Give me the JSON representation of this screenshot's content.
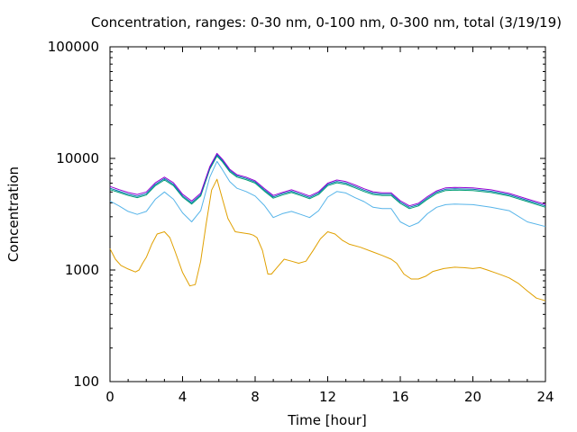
{
  "chart_data": {
    "type": "line",
    "title": "Concentration, ranges: 0-30 nm, 0-100 nm, 0-300 nm, total (3/19/19)",
    "xlabel": "Time [hour]",
    "ylabel": "Concentration",
    "xlim": [
      0,
      24
    ],
    "ylim": [
      100,
      100000
    ],
    "yscale": "log",
    "grid": false,
    "legend": "none",
    "xticks": [
      0,
      4,
      8,
      12,
      16,
      20,
      24
    ],
    "xtick_labels": [
      "0",
      "4",
      "8",
      "12",
      "16",
      "20",
      "24"
    ],
    "yticks": [
      100,
      1000,
      10000,
      100000
    ],
    "ytick_labels": [
      "100",
      "1000",
      "10000",
      "100000"
    ],
    "series": [
      {
        "color": "#e0a000",
        "x": [
          0,
          0.3,
          0.6,
          1.0,
          1.4,
          1.6,
          1.8,
          2.0,
          2.3,
          2.6,
          3.0,
          3.3,
          3.6,
          4.0,
          4.4,
          4.7,
          5.0,
          5.3,
          5.6,
          5.9,
          6.2,
          6.5,
          6.9,
          7.3,
          7.7,
          7.9,
          8.1,
          8.4,
          8.7,
          8.9,
          9.2,
          9.6,
          10.0,
          10.4,
          10.8,
          11.2,
          11.6,
          12.0,
          12.4,
          12.8,
          13.2,
          13.8,
          14.5,
          15.0,
          15.5,
          15.8,
          16.2,
          16.6,
          17.0,
          17.4,
          17.8,
          18.4,
          19.0,
          19.5,
          20.0,
          20.4,
          20.8,
          21.2,
          21.6,
          22.0,
          22.5,
          23.0,
          23.5,
          24.0
        ],
        "values": [
          1550,
          1250,
          1100,
          1020,
          960,
          1000,
          1150,
          1300,
          1700,
          2100,
          2200,
          1950,
          1450,
          950,
          720,
          740,
          1200,
          2600,
          5200,
          6500,
          4300,
          2900,
          2200,
          2150,
          2100,
          2050,
          1950,
          1500,
          920,
          920,
          1050,
          1250,
          1200,
          1150,
          1200,
          1500,
          1900,
          2200,
          2100,
          1850,
          1700,
          1600,
          1450,
          1350,
          1250,
          1150,
          920,
          830,
          830,
          880,
          970,
          1030,
          1060,
          1050,
          1030,
          1050,
          1000,
          950,
          900,
          850,
          760,
          650,
          560,
          530
        ]
      },
      {
        "color": "#56b4e9",
        "x": [
          0,
          0.5,
          1.0,
          1.5,
          2.0,
          2.5,
          3.0,
          3.5,
          4.0,
          4.5,
          5.0,
          5.5,
          5.9,
          6.2,
          6.6,
          7.0,
          7.5,
          8.0,
          8.5,
          9.0,
          9.5,
          10.0,
          10.5,
          11.0,
          11.5,
          12.0,
          12.5,
          13.0,
          13.5,
          14.0,
          14.5,
          15.0,
          15.5,
          16.0,
          16.5,
          17.0,
          17.5,
          18.0,
          18.5,
          19.0,
          20.0,
          21.0,
          22.0,
          23.0,
          24.0
        ],
        "values": [
          4150,
          3750,
          3350,
          3150,
          3350,
          4300,
          5000,
          4300,
          3250,
          2700,
          3400,
          6800,
          9400,
          7900,
          6200,
          5400,
          5050,
          4600,
          3800,
          2950,
          3200,
          3350,
          3150,
          2950,
          3400,
          4500,
          5050,
          4900,
          4450,
          4100,
          3650,
          3550,
          3550,
          2700,
          2450,
          2650,
          3200,
          3650,
          3850,
          3900,
          3850,
          3650,
          3400,
          2700,
          2450
        ]
      },
      {
        "color": "#009e73",
        "x": [
          0,
          0.5,
          1.0,
          1.5,
          2.0,
          2.5,
          3.0,
          3.5,
          4.0,
          4.5,
          5.0,
          5.5,
          5.9,
          6.2,
          6.6,
          7.0,
          7.5,
          8.0,
          8.5,
          9.0,
          9.5,
          10.0,
          10.5,
          11.0,
          11.5,
          12.0,
          12.5,
          13.0,
          13.5,
          14.0,
          14.5,
          15.0,
          15.5,
          16.0,
          16.5,
          17.0,
          17.5,
          18.0,
          18.5,
          19.0,
          20.0,
          21.0,
          22.0,
          23.0,
          24.0
        ],
        "values": [
          5250,
          4950,
          4650,
          4450,
          4700,
          5700,
          6400,
          5700,
          4500,
          3900,
          4600,
          8000,
          10500,
          9300,
          7600,
          6800,
          6450,
          6000,
          5100,
          4400,
          4700,
          4950,
          4650,
          4350,
          4750,
          5700,
          6050,
          5850,
          5450,
          5050,
          4750,
          4650,
          4650,
          3950,
          3550,
          3750,
          4300,
          4850,
          5150,
          5200,
          5150,
          4950,
          4600,
          4100,
          3650
        ]
      },
      {
        "color": "#0072b2",
        "x": [
          0,
          0.5,
          1.0,
          1.5,
          2.0,
          2.5,
          3.0,
          3.5,
          4.0,
          4.5,
          5.0,
          5.5,
          5.9,
          6.2,
          6.6,
          7.0,
          7.5,
          8.0,
          8.5,
          9.0,
          9.5,
          10.0,
          10.5,
          11.0,
          11.5,
          12.0,
          12.5,
          13.0,
          13.5,
          14.0,
          14.5,
          15.0,
          15.5,
          16.0,
          16.5,
          17.0,
          17.5,
          18.0,
          18.5,
          19.0,
          20.0,
          21.0,
          22.0,
          23.0,
          24.0
        ],
        "values": [
          5400,
          5080,
          4780,
          4580,
          4830,
          5850,
          6600,
          5850,
          4620,
          4000,
          4720,
          8200,
          10800,
          9550,
          7800,
          6980,
          6620,
          6150,
          5230,
          4520,
          4830,
          5080,
          4780,
          4470,
          4880,
          5850,
          6220,
          6010,
          5600,
          5190,
          4880,
          4780,
          4780,
          4060,
          3650,
          3850,
          4420,
          4980,
          5290,
          5340,
          5290,
          5080,
          4720,
          4210,
          3750
        ]
      },
      {
        "color": "#9400d3",
        "x": [
          0,
          0.5,
          1.0,
          1.5,
          2.0,
          2.5,
          3.0,
          3.5,
          4.0,
          4.5,
          5.0,
          5.5,
          5.9,
          6.2,
          6.6,
          7.0,
          7.5,
          8.0,
          8.5,
          9.0,
          9.5,
          10.0,
          10.5,
          11.0,
          11.5,
          12.0,
          12.5,
          13.0,
          13.5,
          14.0,
          14.5,
          15.0,
          15.5,
          16.0,
          16.5,
          17.0,
          17.5,
          18.0,
          18.5,
          19.0,
          20.0,
          21.0,
          22.0,
          23.0,
          24.0
        ],
        "values": [
          5600,
          5250,
          4950,
          4750,
          5000,
          6050,
          6800,
          6050,
          4780,
          4150,
          4880,
          8450,
          11100,
          9800,
          8000,
          7150,
          6800,
          6300,
          5380,
          4650,
          4950,
          5230,
          4920,
          4600,
          5020,
          6000,
          6400,
          6200,
          5780,
          5350,
          5020,
          4920,
          4920,
          4180,
          3760,
          3960,
          4550,
          5120,
          5450,
          5500,
          5450,
          5230,
          4860,
          4330,
          3870
        ]
      }
    ]
  }
}
